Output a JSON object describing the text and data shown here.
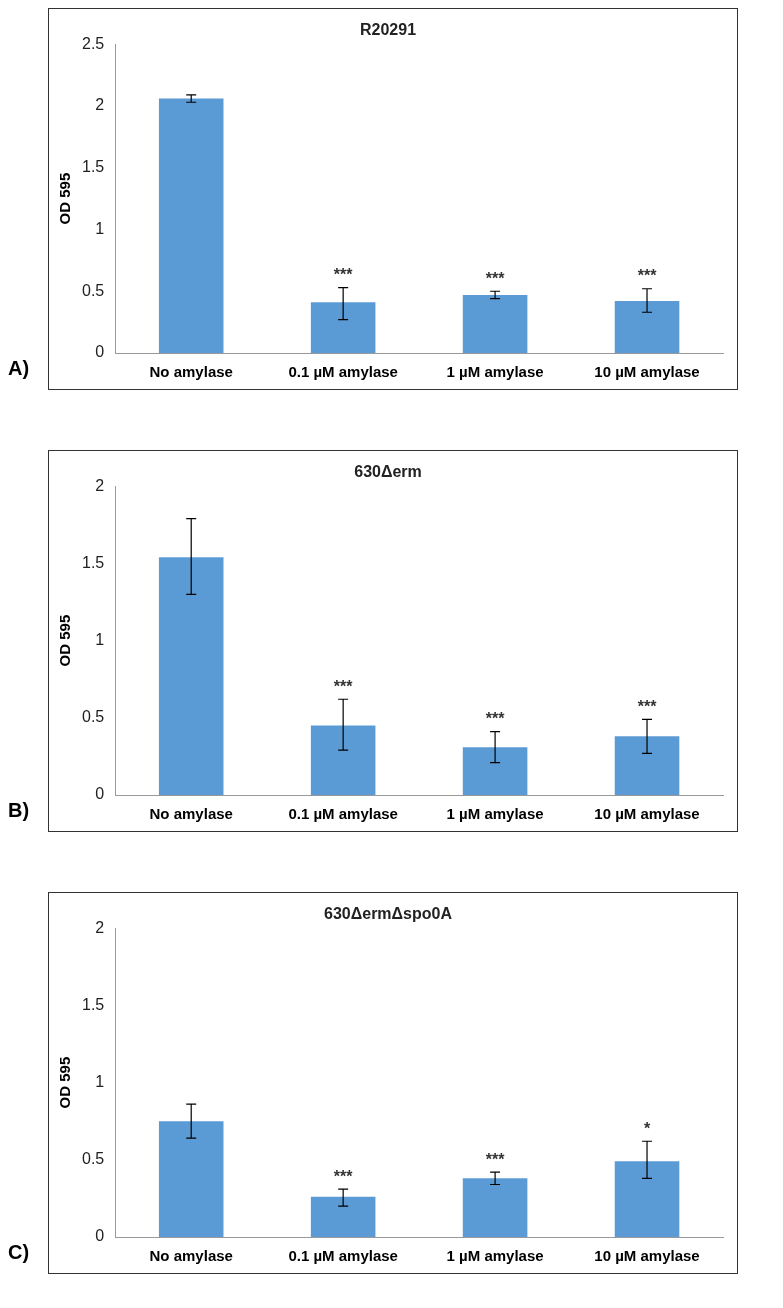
{
  "chart_data": [
    {
      "type": "bar",
      "title": "R20291",
      "ylabel": "OD 595",
      "categories": [
        "No amylase",
        "0.1 µM amylase",
        "1 µM amylase",
        "10 µM amylase"
      ],
      "values": [
        2.06,
        0.41,
        0.47,
        0.42
      ],
      "color": "#5b9bd5",
      "errors": [
        [
          2.03,
          2.09
        ],
        [
          0.27,
          0.53
        ],
        [
          0.44,
          0.5
        ],
        [
          0.33,
          0.52
        ]
      ],
      "ylim": [
        0,
        2.5
      ],
      "yticks": [
        0,
        0.5,
        1,
        1.5,
        2,
        2.5
      ],
      "grid": false,
      "legend": false,
      "annotations": [
        "A)",
        {
          "text": "***",
          "x": "0.1 µM amylase",
          "y": 0.41
        },
        {
          "text": "***",
          "x": "1 µM amylase",
          "y": 0.47
        },
        {
          "text": "***",
          "x": "10 µM amylase",
          "y": 0.42
        }
      ]
    },
    {
      "type": "bar",
      "title": "630Δerm",
      "ylabel": "OD 595",
      "categories": [
        "No amylase",
        "0.1 µM amylase",
        "1 µM amylase",
        "10 µM amylase"
      ],
      "values": [
        1.54,
        0.45,
        0.31,
        0.38
      ],
      "color": "#5b9bd5",
      "errors": [
        [
          1.3,
          1.79
        ],
        [
          0.29,
          0.62
        ],
        [
          0.21,
          0.41
        ],
        [
          0.27,
          0.49
        ]
      ],
      "ylim": [
        0,
        2
      ],
      "yticks": [
        0,
        0.5,
        1,
        1.5,
        2
      ],
      "grid": false,
      "legend": false,
      "annotations": [
        "B)",
        {
          "text": "***",
          "x": "0.1 µM amylase",
          "y": 0.45
        },
        {
          "text": "***",
          "x": "1 µM amylase",
          "y": 0.31
        },
        {
          "text": "***",
          "x": "10 µM amylase",
          "y": 0.38
        }
      ]
    },
    {
      "type": "bar",
      "title": "630ΔermΔspo0A",
      "ylabel": "OD 595",
      "categories": [
        "No amylase",
        "0.1 µM amylase",
        "1 µM amylase",
        "10 µM amylase"
      ],
      "values": [
        0.75,
        0.26,
        0.38,
        0.49
      ],
      "color": "#5b9bd5",
      "errors": [
        [
          0.64,
          0.86
        ],
        [
          0.2,
          0.31
        ],
        [
          0.34,
          0.42
        ],
        [
          0.38,
          0.62
        ]
      ],
      "ylim": [
        0,
        2
      ],
      "yticks": [
        0,
        0.5,
        1,
        1.5,
        2
      ],
      "grid": false,
      "legend": false,
      "annotations": [
        "C)",
        {
          "text": "***",
          "x": "0.1 µM amylase",
          "y": 0.26
        },
        {
          "text": "***",
          "x": "1 µM amylase",
          "y": 0.38
        },
        {
          "text": "*",
          "x": "10 µM amylase",
          "y": 0.49
        }
      ]
    }
  ]
}
